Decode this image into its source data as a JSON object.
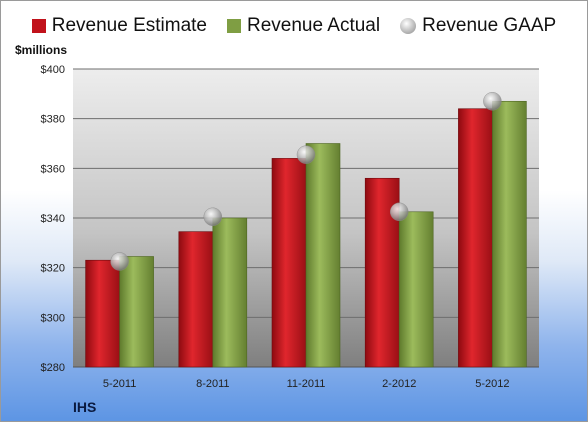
{
  "chart_data": {
    "type": "bar",
    "title": "",
    "unit_label": "$millions",
    "company": "IHS",
    "categories": [
      "5-2011",
      "8-2011",
      "11-2011",
      "2-2012",
      "5-2012"
    ],
    "series": [
      {
        "name": "Revenue Estimate",
        "type": "bar",
        "color": "#c1121b",
        "values": [
          323,
          334.5,
          364,
          356,
          384
        ]
      },
      {
        "name": "Revenue Actual",
        "type": "bar",
        "color": "#7f9e43",
        "values": [
          324.5,
          340,
          370,
          342.5,
          387
        ]
      },
      {
        "name": "Revenue GAAP",
        "type": "marker",
        "color": "#b0b0b0",
        "values": [
          322.5,
          340.5,
          365.5,
          342.5,
          387
        ]
      }
    ],
    "ylim": [
      280,
      400
    ],
    "yticks": [
      280,
      300,
      320,
      340,
      360,
      380,
      400
    ],
    "ytick_labels": [
      "$280",
      "$300",
      "$320",
      "$340",
      "$360",
      "$380",
      "$400"
    ],
    "grid": true,
    "legend_position": "top"
  }
}
